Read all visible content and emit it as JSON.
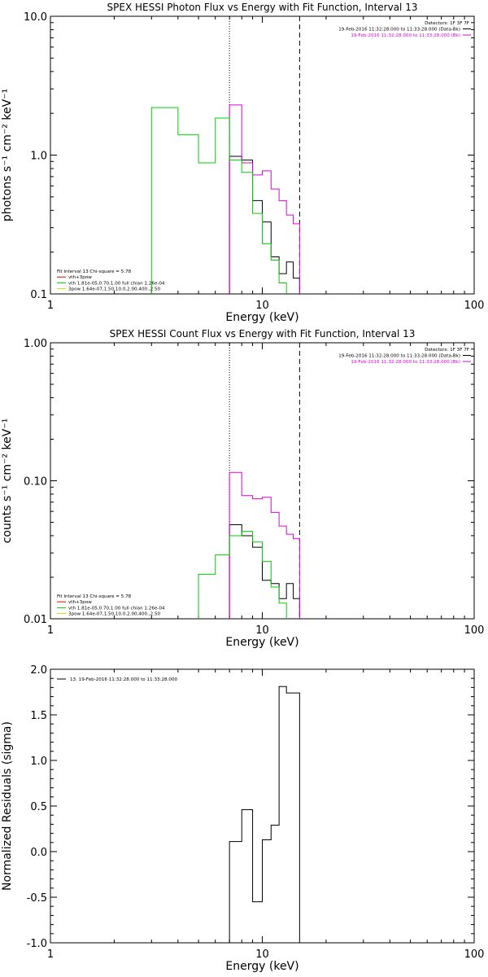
{
  "colors": {
    "black": "#000000",
    "magenta": "#e000e0",
    "green": "#00d000",
    "yellow": "#d8d800"
  },
  "chart_data": [
    {
      "type": "line",
      "title": "SPEX HESSI Photon Flux vs Energy with Fit Function, Interval 13",
      "xlabel": "Energy (keV)",
      "ylabel": "photons s⁻¹ cm⁻² keV⁻¹",
      "xscale": "log",
      "yscale": "log",
      "xlim": [
        1,
        100
      ],
      "ylim": [
        0.1,
        10
      ],
      "xticks": [
        {
          "v": 1,
          "label": "1"
        },
        {
          "v": 10,
          "label": "10"
        },
        {
          "v": 100,
          "label": "100"
        }
      ],
      "yticks": [
        {
          "v": 0.1,
          "label": "0.1"
        },
        {
          "v": 1,
          "label": "1.0"
        },
        {
          "v": 10,
          "label": "10.0"
        }
      ],
      "vlines": [
        {
          "x": 7.0,
          "style": "dotted"
        },
        {
          "x": 15.0,
          "style": "dashed"
        }
      ],
      "top_right_text": [
        {
          "text": "Detectors: 1F 3F 7F",
          "color": "#000000"
        },
        {
          "text": "19-Feb-2016 11:32:28.000 to 11:33:28.000 (Data-Bk)",
          "color": "#000000",
          "swatch": true
        },
        {
          "text": "19-Feb-2016 11:32:28.000 to 11:33:28.000 (Bk)",
          "color": "#e000e0",
          "swatch": true
        }
      ],
      "fit_text": [
        {
          "text": "Fit Interval 13   Chi-square = 5.78",
          "color": "#000000",
          "swatch": false
        },
        {
          "text": "vth+3pow",
          "color": "#e00000",
          "swatch": true
        },
        {
          "text": "vth 1.81e-05,0.70,1.00  full chian 1.26e-04",
          "color": "#00d000",
          "swatch": true
        },
        {
          "text": "3pow 1.64e-07,1.50,10.0,2.00,400.,2.50",
          "color": "#d8d800",
          "swatch": true
        }
      ],
      "series": [
        {
          "color": "#000000",
          "edges": [
            7.0,
            8.0,
            9.0,
            10.0,
            11.0,
            12.0,
            13.0,
            14.0,
            15.0
          ],
          "values": [
            0.98,
            0.92,
            0.47,
            0.33,
            0.185,
            0.14,
            0.17,
            0.13
          ]
        },
        {
          "color": "#e000e0",
          "edges": [
            7.0,
            8.0,
            9.0,
            10.0,
            11.0,
            12.0,
            13.0,
            14.0,
            15.0
          ],
          "values": [
            2.3,
            0.88,
            0.72,
            0.77,
            0.57,
            0.47,
            0.37,
            0.32
          ]
        },
        {
          "color": "#00d000",
          "edges": [
            3.0,
            4.0,
            5.0,
            6.0,
            7.0,
            8.0,
            9.0,
            10.0,
            11.0,
            12.0,
            13.0
          ],
          "values": [
            2.2,
            1.4,
            0.88,
            1.85,
            0.92,
            0.75,
            0.38,
            0.23,
            0.175,
            0.12,
            0.1
          ]
        }
      ]
    },
    {
      "type": "line",
      "title": "SPEX HESSI Count Flux vs Energy with Fit Function, Interval 13",
      "xlabel": "Energy (keV)",
      "ylabel": "counts s⁻¹ cm⁻² keV⁻¹",
      "xscale": "log",
      "yscale": "log",
      "xlim": [
        1,
        100
      ],
      "ylim": [
        0.01,
        1
      ],
      "xticks": [
        {
          "v": 1,
          "label": "1"
        },
        {
          "v": 10,
          "label": "10"
        },
        {
          "v": 100,
          "label": "100"
        }
      ],
      "yticks": [
        {
          "v": 0.01,
          "label": "0.01"
        },
        {
          "v": 0.1,
          "label": "0.10"
        },
        {
          "v": 1,
          "label": "1.00"
        }
      ],
      "vlines": [
        {
          "x": 7.0,
          "style": "dotted"
        },
        {
          "x": 15.0,
          "style": "dashed"
        }
      ],
      "top_right_text": [
        {
          "text": "Detectors: 1F 3F 7F",
          "color": "#000000"
        },
        {
          "text": "19-Feb-2016 11:32:28.000 to 11:33:28.000 (Data-Bk)",
          "color": "#000000",
          "swatch": true
        },
        {
          "text": "19-Feb-2016 11:32:28.000 to 11:33:28.000 (Bk)",
          "color": "#e000e0",
          "swatch": true
        }
      ],
      "fit_text": [
        {
          "text": "Fit Interval 13   Chi-square = 5.78",
          "color": "#000000",
          "swatch": false
        },
        {
          "text": "vth+3pow",
          "color": "#e00000",
          "swatch": true
        },
        {
          "text": "vth 1.81e-05,0.70,1.00  full chian 1.26e-04",
          "color": "#00d000",
          "swatch": true
        },
        {
          "text": "3pow 1.64e-07,1.50,10.0,2.00,400.,2.50",
          "color": "#d8d800",
          "swatch": true
        }
      ],
      "series": [
        {
          "color": "#000000",
          "edges": [
            7.0,
            8.0,
            9.0,
            10.0,
            11.0,
            12.0,
            13.0,
            14.0,
            15.0
          ],
          "values": [
            0.048,
            0.04,
            0.033,
            0.019,
            0.018,
            0.014,
            0.018,
            0.014
          ]
        },
        {
          "color": "#e000e0",
          "edges": [
            7.0,
            8.0,
            9.0,
            10.0,
            11.0,
            12.0,
            13.0,
            14.0,
            15.0
          ],
          "values": [
            0.115,
            0.078,
            0.074,
            0.076,
            0.059,
            0.047,
            0.041,
            0.038
          ]
        },
        {
          "color": "#00d000",
          "edges": [
            5.0,
            6.0,
            7.0,
            8.0,
            9.0,
            10.0,
            11.0,
            12.0,
            13.0
          ],
          "values": [
            0.021,
            0.029,
            0.04,
            0.043,
            0.036,
            0.026,
            0.017,
            0.013,
            0.01
          ]
        }
      ]
    },
    {
      "type": "line",
      "title": "",
      "xlabel": "Energy (keV)",
      "ylabel": "Normalized Residuals (sigma)",
      "xscale": "log",
      "yscale": "linear",
      "xlim": [
        1,
        100
      ],
      "ylim": [
        -1,
        2
      ],
      "xticks": [
        {
          "v": 1,
          "label": "1"
        },
        {
          "v": 10,
          "label": "10"
        },
        {
          "v": 100,
          "label": "100"
        }
      ],
      "yticks": [
        {
          "v": -1.0,
          "label": "-1.0"
        },
        {
          "v": -0.5,
          "label": "-0.5"
        },
        {
          "v": 0.0,
          "label": "0.0"
        },
        {
          "v": 0.5,
          "label": "0.5"
        },
        {
          "v": 1.0,
          "label": "1.0"
        },
        {
          "v": 1.5,
          "label": "1.5"
        },
        {
          "v": 2.0,
          "label": "2.0"
        }
      ],
      "legend": [
        {
          "text": "13. 19-Feb-2016 11:32:28.000 to 11:33:28.000",
          "color": "#000000"
        }
      ],
      "series": [
        {
          "color": "#000000",
          "edges": [
            7.0,
            8.0,
            9.0,
            10.0,
            11.0,
            12.0,
            13.0,
            14.0,
            15.0
          ],
          "values": [
            0.11,
            0.46,
            -0.55,
            0.13,
            0.29,
            1.81,
            1.74,
            1.74
          ]
        }
      ]
    }
  ]
}
